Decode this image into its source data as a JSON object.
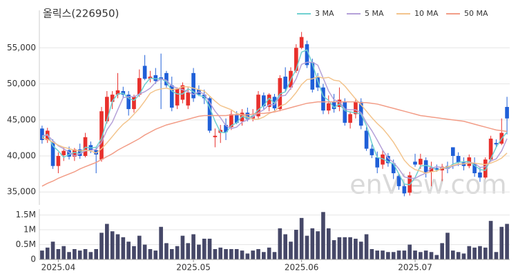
{
  "chart_data": [
    {
      "type": "candlestick",
      "title": "올릭스(226950)",
      "watermark": "enView.com",
      "up_color": "#e8302c",
      "down_color": "#1f5fd8",
      "grid": true,
      "legend": "top-right",
      "ylim": [
        33200,
        60200
      ],
      "yticks": [
        {
          "value": 35000,
          "label": "35,000"
        },
        {
          "value": 40000,
          "label": "40,000"
        },
        {
          "value": 45000,
          "label": "45,000"
        },
        {
          "value": 50000,
          "label": "50,000"
        },
        {
          "value": 55000,
          "label": "55,000"
        }
      ],
      "open": [
        43800,
        42200,
        42000,
        38600,
        40100,
        40800,
        39900,
        40900,
        40000,
        41500,
        40800,
        39500,
        44800,
        47500,
        48500,
        49000,
        48500,
        46500,
        48500,
        52500,
        50700,
        51200,
        50900,
        51500,
        49800,
        47000,
        47800,
        47000,
        51500,
        49200,
        48500,
        48000,
        42600,
        43200,
        44300,
        44000,
        45800,
        44800,
        46000,
        45200,
        45500,
        48400,
        46800,
        48200,
        46500,
        51000,
        49500,
        51800,
        55000,
        55500,
        53000,
        51000,
        49500,
        46300,
        47500,
        46800,
        47500,
        44600,
        45800,
        47500,
        43500,
        41000,
        39800,
        38800,
        40000,
        39000,
        37200,
        35800,
        34900,
        39200,
        38800,
        39400,
        37800,
        38300,
        38000,
        38600,
        41200,
        40000,
        39100,
        38600,
        39000,
        37700,
        37000,
        39500,
        41800,
        41700,
        46800
      ],
      "high": [
        44200,
        43900,
        42300,
        40500,
        41200,
        41300,
        41100,
        41700,
        43200,
        42000,
        41200,
        46800,
        49000,
        49000,
        51500,
        49600,
        49000,
        48500,
        52000,
        54000,
        51800,
        52200,
        54200,
        51800,
        51000,
        49500,
        50200,
        49500,
        52200,
        49800,
        49200,
        48200,
        43800,
        44300,
        45200,
        46300,
        46200,
        46500,
        46700,
        46500,
        49000,
        48800,
        48700,
        48600,
        51200,
        52300,
        52300,
        55500,
        57200,
        56000,
        53500,
        51500,
        50000,
        48400,
        48600,
        49500,
        48000,
        46200,
        48000,
        48000,
        44000,
        41600,
        40600,
        40800,
        40400,
        39500,
        37500,
        36200,
        37800,
        40300,
        40300,
        39800,
        39200,
        38800,
        38900,
        39200,
        41200,
        40500,
        39800,
        40200,
        39800,
        38500,
        39800,
        42800,
        42300,
        45200,
        48200
      ],
      "low": [
        41700,
        41800,
        38200,
        37600,
        39300,
        39500,
        39300,
        39600,
        39800,
        40400,
        37600,
        39200,
        44500,
        46500,
        48000,
        48000,
        45600,
        46000,
        48200,
        50500,
        50200,
        50000,
        46500,
        49500,
        46200,
        46500,
        47300,
        46500,
        47500,
        48300,
        47200,
        43200,
        41200,
        41800,
        42200,
        43600,
        44400,
        44200,
        44800,
        44800,
        45200,
        46500,
        46200,
        46300,
        46200,
        49000,
        49200,
        51500,
        54800,
        52200,
        48800,
        49000,
        45800,
        45800,
        46000,
        46200,
        44200,
        43800,
        45200,
        43700,
        40700,
        39700,
        37600,
        38200,
        38500,
        36800,
        35300,
        34400,
        34500,
        38500,
        38200,
        37000,
        35800,
        37800,
        36500,
        37600,
        38200,
        38600,
        38000,
        38300,
        37100,
        36400,
        36800,
        39200,
        41200,
        41500,
        43000
      ],
      "close": [
        42200,
        43500,
        38600,
        40000,
        40700,
        39900,
        40900,
        40000,
        42600,
        40800,
        40200,
        46200,
        48200,
        48500,
        49100,
        48500,
        46500,
        48200,
        50800,
        50700,
        51000,
        50400,
        50600,
        49800,
        46700,
        49300,
        49800,
        48800,
        48000,
        48500,
        48000,
        43500,
        42800,
        43600,
        43300,
        45800,
        44600,
        46000,
        45100,
        45600,
        48500,
        46900,
        48500,
        46600,
        50800,
        49300,
        51800,
        55000,
        56500,
        52600,
        49200,
        49500,
        46300,
        47300,
        46500,
        47800,
        44600,
        45800,
        47500,
        44200,
        41000,
        40100,
        38400,
        40200,
        39000,
        37600,
        35800,
        34800,
        37300,
        38800,
        39600,
        37600,
        38400,
        38100,
        38500,
        38200,
        40000,
        39100,
        38600,
        39800,
        37600,
        37000,
        39500,
        42400,
        41600,
        43200,
        45200
      ],
      "series": [
        {
          "name": "3 MA",
          "color": "#6fd0d0",
          "values": [
            42600,
            43000,
            41400,
            40700,
            39800,
            40200,
            40500,
            40300,
            41200,
            41100,
            41200,
            42400,
            44900,
            47600,
            48600,
            48700,
            48000,
            47700,
            48500,
            49900,
            50800,
            50700,
            50700,
            50300,
            49000,
            48600,
            48600,
            49300,
            48900,
            48400,
            48200,
            46700,
            44800,
            43300,
            43200,
            44200,
            44600,
            45500,
            45200,
            45600,
            46400,
            47000,
            48000,
            47300,
            48600,
            48900,
            50600,
            52000,
            54400,
            54700,
            52800,
            50400,
            48300,
            47700,
            46700,
            47200,
            46300,
            46100,
            46000,
            45800,
            44200,
            41800,
            39800,
            39600,
            39200,
            38900,
            37500,
            36100,
            36000,
            37000,
            38600,
            38700,
            38500,
            38000,
            38300,
            38300,
            38900,
            39100,
            39200,
            39200,
            38700,
            38100,
            38000,
            39600,
            41200,
            42400,
            43300
          ]
        },
        {
          "name": "5 MA",
          "color": "#b4a0d8",
          "values": [
            42800,
            42900,
            42100,
            41400,
            41000,
            40500,
            40000,
            40300,
            40700,
            40800,
            40900,
            41900,
            43600,
            44700,
            46400,
            48100,
            48200,
            48200,
            48600,
            48900,
            49400,
            50200,
            50700,
            50500,
            49700,
            49400,
            49200,
            48900,
            48500,
            48900,
            48600,
            47400,
            46200,
            45300,
            44200,
            43800,
            44000,
            44700,
            45000,
            45400,
            46000,
            46400,
            47100,
            47100,
            48300,
            48400,
            49400,
            50700,
            52700,
            53000,
            53000,
            52600,
            50800,
            49000,
            47800,
            47500,
            46500,
            46400,
            46400,
            46000,
            44600,
            43500,
            42200,
            40800,
            39700,
            39100,
            38200,
            37100,
            36900,
            36900,
            37300,
            37600,
            38300,
            38500,
            38400,
            38200,
            38600,
            38800,
            38900,
            39100,
            39000,
            38400,
            38500,
            39300,
            39600,
            40700,
            42400
          ]
        },
        {
          "name": "10 MA",
          "color": "#f3c48c",
          "values": [
            42500,
            42300,
            41900,
            41500,
            41200,
            41000,
            40800,
            40700,
            40800,
            40700,
            40400,
            41000,
            41800,
            42700,
            43600,
            44400,
            45000,
            45800,
            46600,
            47600,
            48700,
            49100,
            49300,
            49400,
            49200,
            49300,
            49600,
            49600,
            49400,
            49200,
            49000,
            48300,
            47600,
            47000,
            46700,
            46400,
            45900,
            45700,
            45400,
            45100,
            45100,
            45400,
            45900,
            46200,
            46900,
            47200,
            47900,
            48800,
            49900,
            50600,
            50700,
            51000,
            50800,
            50900,
            50500,
            50400,
            49700,
            48800,
            47900,
            47100,
            46200,
            45300,
            44500,
            43800,
            42900,
            41900,
            40700,
            39400,
            38600,
            38100,
            37900,
            37600,
            37800,
            37900,
            38300,
            38500,
            38700,
            38900,
            38900,
            39000,
            39000,
            38900,
            38800,
            39000,
            39300,
            39700,
            40400
          ]
        },
        {
          "name": "50 MA",
          "color": "#f29c86",
          "values": [
            35800,
            36200,
            36500,
            36900,
            37200,
            37500,
            37800,
            38200,
            38500,
            38800,
            39100,
            39500,
            39900,
            40300,
            40800,
            41200,
            41600,
            42000,
            42400,
            42900,
            43300,
            43700,
            44000,
            44300,
            44500,
            44700,
            44900,
            45100,
            45300,
            45500,
            45600,
            45600,
            45600,
            45600,
            45600,
            45700,
            45700,
            45700,
            45700,
            45800,
            45900,
            45900,
            46000,
            46100,
            46300,
            46500,
            46700,
            46900,
            47100,
            47300,
            47400,
            47500,
            47500,
            47500,
            47500,
            47500,
            47500,
            47500,
            47500,
            47400,
            47400,
            47300,
            47200,
            47000,
            46800,
            46600,
            46400,
            46200,
            46000,
            45800,
            45600,
            45500,
            45400,
            45300,
            45200,
            45100,
            45000,
            44900,
            44800,
            44600,
            44400,
            44200,
            44000,
            43800,
            43600,
            43500,
            43400
          ]
        }
      ]
    },
    {
      "type": "bar",
      "color": "#464868",
      "grid": true,
      "ylim": [
        0,
        1700000
      ],
      "yticks": [
        0,
        {
          "value": 500000,
          "label": "0.5M"
        },
        {
          "value": 1000000,
          "label": "1M"
        },
        {
          "value": 1500000,
          "label": "1.5M"
        }
      ],
      "categories": [
        null,
        null,
        null,
        "2025.04",
        null,
        null,
        null,
        null,
        null,
        null,
        null,
        null,
        null,
        null,
        null,
        null,
        null,
        null,
        null,
        null,
        null,
        null,
        null,
        null,
        null,
        null,
        null,
        null,
        "2025.05",
        null,
        null,
        null,
        null,
        null,
        null,
        null,
        null,
        null,
        null,
        null,
        null,
        null,
        null,
        null,
        null,
        null,
        null,
        null,
        "2025.06",
        null,
        null,
        null,
        null,
        null,
        null,
        null,
        null,
        null,
        null,
        null,
        null,
        null,
        null,
        null,
        null,
        null,
        null,
        null,
        null,
        "2025.07",
        null,
        null,
        null,
        null,
        null,
        null,
        null,
        null,
        null,
        null,
        null,
        null,
        null,
        null,
        null,
        null,
        null
      ],
      "values": [
        300000,
        400000,
        600000,
        350000,
        450000,
        250000,
        350000,
        300000,
        350000,
        250000,
        350000,
        900000,
        1200000,
        950000,
        850000,
        750000,
        600000,
        450000,
        800000,
        500000,
        350000,
        300000,
        1100000,
        550000,
        350000,
        450000,
        800000,
        550000,
        850000,
        500000,
        700000,
        700000,
        350000,
        400000,
        350000,
        350000,
        350000,
        300000,
        200000,
        300000,
        350000,
        250000,
        400000,
        250000,
        1050000,
        850000,
        600000,
        1000000,
        1400000,
        800000,
        1050000,
        950000,
        1600000,
        1050000,
        650000,
        750000,
        750000,
        750000,
        700000,
        600000,
        850000,
        350000,
        300000,
        300000,
        250000,
        250000,
        300000,
        300000,
        500000,
        300000,
        250000,
        300000,
        250000,
        150000,
        550000,
        900000,
        300000,
        250000,
        200000,
        450000,
        400000,
        450000,
        400000,
        1300000,
        250000,
        1100000,
        1200000
      ]
    }
  ]
}
